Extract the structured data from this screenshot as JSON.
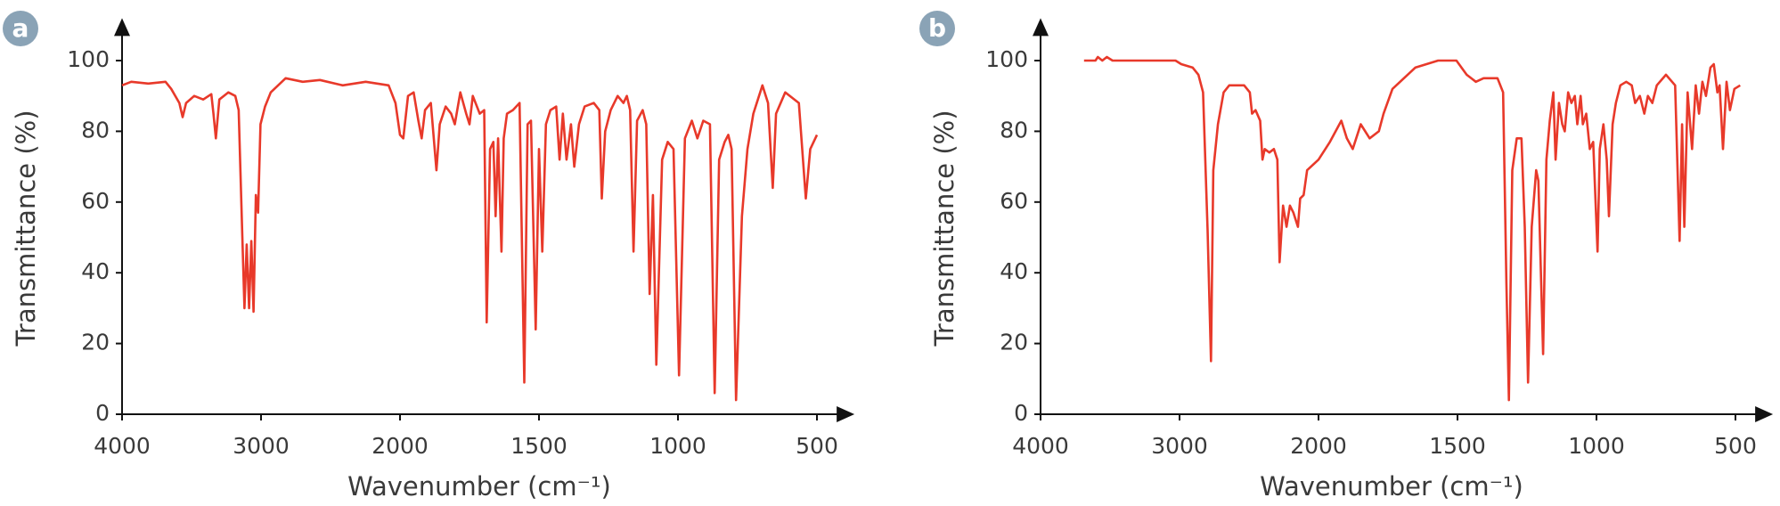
{
  "chart_data": [
    {
      "type": "line",
      "label": "a",
      "x_label": "Wavenumber (cm⁻¹)",
      "y_label": "Transmittance (%)",
      "color": "#e8392a",
      "xlim": [
        4000,
        365
      ],
      "xticks": [
        4000,
        3000,
        2000,
        1500,
        1000,
        500
      ],
      "ylim": [
        0,
        112
      ],
      "yticks": [
        0,
        20,
        40,
        60,
        80,
        100
      ],
      "x": [
        4000,
        3934,
        3811,
        3687,
        3646,
        3588,
        3564,
        3539,
        3481,
        3416,
        3358,
        3342,
        3325,
        3300,
        3235,
        3185,
        3161,
        3136,
        3119,
        3103,
        3086,
        3070,
        3054,
        3037,
        3021,
        3004,
        2971,
        2930,
        2823,
        2700,
        2576,
        2412,
        2247,
        2082,
        2033,
        2000,
        1988,
        1971,
        1951,
        1934,
        1922,
        1910,
        1889,
        1869,
        1857,
        1836,
        1816,
        1803,
        1783,
        1762,
        1750,
        1738,
        1713,
        1697,
        1688,
        1676,
        1664,
        1656,
        1647,
        1635,
        1627,
        1615,
        1594,
        1570,
        1553,
        1541,
        1529,
        1512,
        1500,
        1488,
        1475,
        1459,
        1438,
        1426,
        1414,
        1401,
        1385,
        1373,
        1356,
        1336,
        1303,
        1283,
        1274,
        1262,
        1242,
        1217,
        1196,
        1184,
        1172,
        1160,
        1147,
        1127,
        1114,
        1102,
        1090,
        1078,
        1057,
        1037,
        1016,
        996,
        975,
        950,
        930,
        909,
        885,
        868,
        852,
        832,
        819,
        807,
        791,
        770,
        750,
        729,
        696,
        676,
        659,
        647,
        614,
        565,
        540,
        524,
        500
      ],
      "values": [
        93,
        94,
        93.5,
        94,
        92,
        88,
        84,
        88,
        90,
        89,
        90.5,
        85,
        78,
        89,
        91,
        90,
        86,
        52,
        30,
        48,
        30,
        49,
        29,
        62,
        57,
        82,
        87,
        91,
        95,
        94,
        94.5,
        93,
        94,
        93,
        88,
        79,
        78,
        90,
        91,
        83,
        78,
        86,
        88,
        69,
        82,
        87,
        85,
        82,
        91,
        85,
        82,
        90,
        85,
        86,
        26,
        75,
        77,
        56,
        78,
        46,
        78,
        85,
        86,
        88,
        9,
        82,
        83,
        24,
        75,
        46,
        82,
        86,
        87,
        72,
        85,
        72,
        82,
        70,
        82,
        87,
        88,
        86,
        61,
        80,
        86,
        90,
        88,
        90,
        86,
        46,
        83,
        86,
        82,
        34,
        62,
        14,
        72,
        77,
        75,
        11,
        78,
        83,
        78,
        83,
        82,
        6,
        72,
        77,
        79,
        75,
        4,
        56,
        75,
        85,
        93,
        88,
        64,
        85,
        91,
        88,
        61,
        75,
        79
      ]
    },
    {
      "type": "line",
      "label": "b",
      "x_label": "Wavenumber (cm⁻¹)",
      "y_label": "Transmittance (%)",
      "color": "#e8392a",
      "xlim": [
        4000,
        365
      ],
      "xticks": [
        4000,
        3000,
        2000,
        1500,
        1000,
        500
      ],
      "ylim": [
        0,
        112
      ],
      "yticks": [
        0,
        20,
        40,
        60,
        80,
        100
      ],
      "x": [
        3687,
        3605,
        3588,
        3556,
        3523,
        3482,
        3276,
        3029,
        2988,
        2905,
        2864,
        2831,
        2798,
        2774,
        2757,
        2724,
        2683,
        2642,
        2535,
        2494,
        2478,
        2453,
        2420,
        2403,
        2387,
        2354,
        2321,
        2296,
        2280,
        2255,
        2230,
        2206,
        2181,
        2148,
        2132,
        2107,
        2082,
        2000,
        1959,
        1918,
        1898,
        1877,
        1848,
        1816,
        1783,
        1766,
        1734,
        1652,
        1570,
        1504,
        1467,
        1434,
        1406,
        1356,
        1336,
        1324,
        1315,
        1303,
        1287,
        1270,
        1258,
        1246,
        1233,
        1217,
        1209,
        1192,
        1180,
        1168,
        1155,
        1147,
        1135,
        1123,
        1114,
        1102,
        1090,
        1078,
        1069,
        1057,
        1049,
        1037,
        1024,
        1012,
        996,
        988,
        975,
        963,
        955,
        942,
        930,
        914,
        893,
        873,
        861,
        844,
        828,
        815,
        799,
        783,
        750,
        717,
        701,
        692,
        684,
        672,
        656,
        643,
        631,
        619,
        606,
        590,
        578,
        565,
        557,
        545,
        532,
        520,
        504,
        483
      ],
      "values": [
        100,
        100,
        101,
        100,
        101,
        100,
        100,
        100,
        99,
        98,
        96,
        91,
        52,
        15,
        69,
        82,
        91,
        93,
        93,
        91,
        85,
        86,
        83,
        72,
        75,
        74,
        75,
        72,
        43,
        59,
        53,
        59,
        57,
        53,
        61,
        62,
        69,
        72,
        77,
        83,
        78,
        75,
        82,
        78,
        80,
        85,
        92,
        98,
        100,
        100,
        96,
        94,
        95,
        95,
        91,
        37,
        4,
        69,
        78,
        78,
        53,
        9,
        53,
        69,
        66,
        17,
        72,
        83,
        91,
        72,
        88,
        82,
        80,
        91,
        88,
        90,
        82,
        90,
        82,
        85,
        75,
        77,
        46,
        75,
        82,
        72,
        56,
        82,
        88,
        93,
        94,
        93,
        88,
        90,
        85,
        90,
        88,
        93,
        96,
        93,
        49,
        82,
        53,
        91,
        75,
        93,
        85,
        94,
        90,
        98,
        99,
        91,
        93,
        75,
        94,
        86,
        92,
        93
      ]
    }
  ]
}
